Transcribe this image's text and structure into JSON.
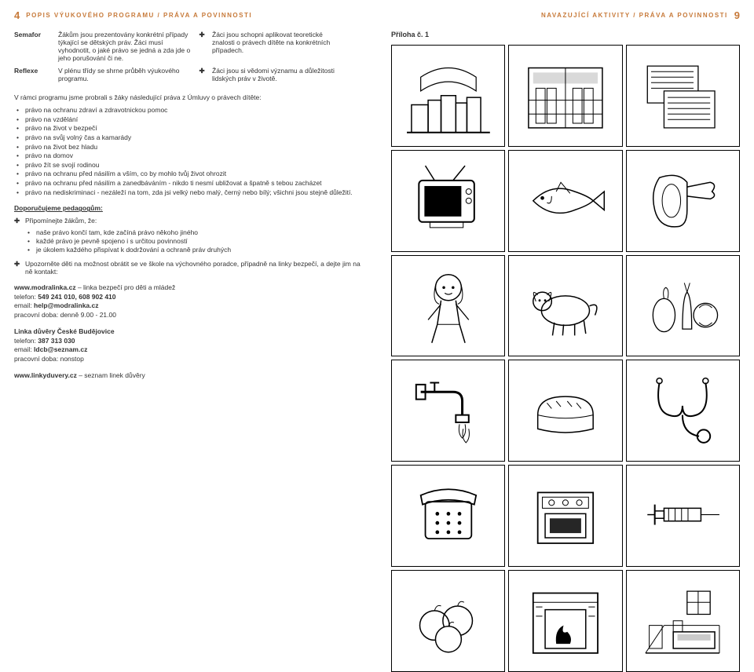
{
  "left": {
    "page_num": "4",
    "header": "POPIS VÝUKOVÉHO PROGRAMU / PRÁVA A POVINNOSTI",
    "table": {
      "row1": {
        "label": "Semafor",
        "colA": "Žákům jsou prezentovány konkrétní případy týkající se dětských práv. Žáci musí vyhodnotit, o jaké právo se jedná a zda jde o jeho porušování či ne.",
        "mark": "✚",
        "colB": "Žáci jsou schopni aplikovat teoretické znalosti o právech dítěte na konkrétních případech."
      },
      "row2": {
        "label": "Reflexe",
        "colA": "V plénu třídy se shrne průběh výukové­ho programu.",
        "mark": "✚",
        "colB": "Žáci jsou si vědomi významu a dů­ležitosti lidských práv v životě."
      }
    },
    "intro": "V rámci programu jsme probrali s žáky následující práva z Úmluvy o právech dítěte:",
    "bullets": [
      "právo na ochranu zdraví a zdravotnickou pomoc",
      "právo na vzdělání",
      "právo na život v bezpečí",
      "právo na svůj volný čas a kamarády",
      "právo na život bez hladu",
      "právo na domov",
      "právo žít se svojí rodinou",
      "právo na ochranu před násilím a vším, co by mohlo tvůj život ohrozit",
      "právo na ochranu před násilím a zanedbáváním - nikdo ti nesmí ubližovat a špatně s tebou zacházet",
      "právo na nediskriminaci - nezáleží na tom, zda jsi velký nebo malý, černý nebo bílý; všichni jsou stejně důležití."
    ],
    "recommend": "Doporučujeme pedagogům:",
    "cross1": {
      "mark": "✚",
      "text": "Připomínejte žákům, že:"
    },
    "sub_bullets": [
      "naše právo končí tam, kde začíná právo někoho jiného",
      "každé právo je pevně spojeno i s určitou povinností",
      "je úkolem každého přispívat k dodržování a ochraně práv druhých"
    ],
    "cross2": {
      "mark": "✚",
      "text": "Upozorněte děti na možnost obrátit se ve škole na výchovného poradce, případně na linky bezpečí, a dejte jim na ně kontakt:"
    },
    "contacts": {
      "c1_www": "www.modralinka.cz",
      "c1_www_after": " – linka bezpečí pro děti a mládež",
      "c1_tel_label": "telefon: ",
      "c1_tel": "549 241 010, 608 902 410",
      "c1_email_label": "email: ",
      "c1_email": "help@modralinka.cz",
      "c1_hours": "pracovní doba: denně 9.00 - 21.00",
      "c2_title": "Linka důvěry České Budějovice",
      "c2_tel_label": "telefon: ",
      "c2_tel": "387 313 030",
      "c2_email_label": "email: ",
      "c2_email": "ldcb@seznam.cz",
      "c2_hours": "pracovní doba: nonstop",
      "c3_www": "www.linkyduvery.cz",
      "c3_www_after": " – seznam linek důvěry"
    }
  },
  "right": {
    "page_num": "9",
    "header": "NAVAZUJÍCÍ AKTIVITY / PRÁVA A POVINNOSTI",
    "priloha": "Příloha č. 1",
    "icons": [
      "books",
      "bookstore",
      "newspapers",
      "tv",
      "fish",
      "meat",
      "girl",
      "dog",
      "vegetables",
      "tap",
      "bread",
      "stethoscope",
      "telephone",
      "stove",
      "syringe",
      "apples",
      "fireplace",
      "bedroom"
    ]
  },
  "colors": {
    "accent": "#c77a3a",
    "text": "#333333",
    "border": "#000000",
    "bg": "#ffffff"
  }
}
